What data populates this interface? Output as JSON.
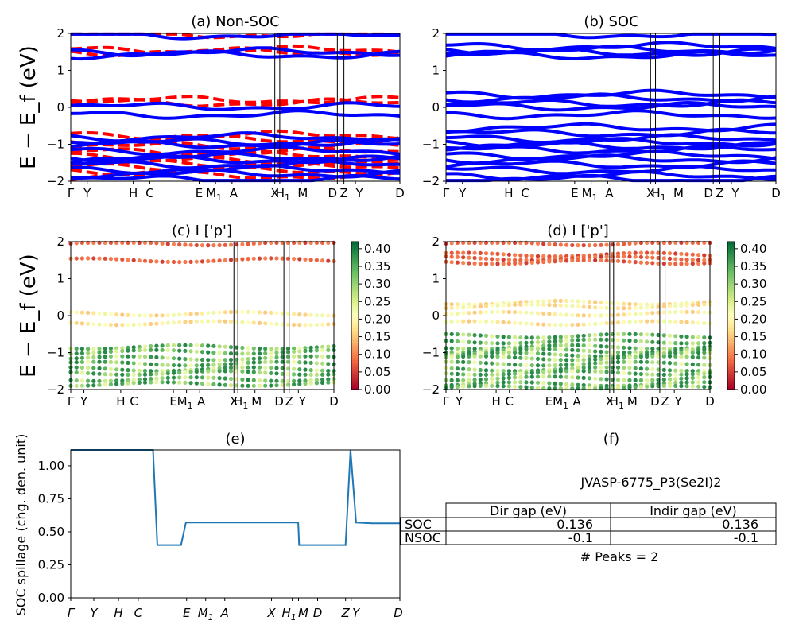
{
  "chart_data": [
    {
      "type": "line",
      "title": "(a) Non-SOC",
      "ylabel": "E − E_f (eV)",
      "ylim": [
        -2,
        2
      ],
      "yticks": [
        "2",
        "1",
        "0",
        "−1",
        "−2"
      ],
      "kpath_labels": [
        "Γ",
        "Y",
        "H",
        "C",
        "E",
        "M1",
        "A",
        "X",
        "H1",
        "M",
        "D",
        "Z",
        "Y",
        "D"
      ],
      "series": [
        {
          "style": "dashed",
          "color": "#ff0000",
          "bands_eV": [
            1.97,
            1.55,
            1.5,
            0.2,
            0.12,
            -0.75,
            -0.88,
            -1.05,
            -1.2,
            -1.3,
            -1.45,
            -1.52,
            -1.6,
            -1.72,
            -1.85
          ]
        },
        {
          "style": "solid",
          "color": "#0000ff",
          "bands_eV": [
            1.95,
            1.5,
            1.42,
            0.02,
            -0.2,
            -0.8,
            -0.95,
            -1.0,
            -1.18,
            -1.35,
            -1.42,
            -1.55,
            -1.68,
            -1.8,
            -1.95
          ]
        }
      ]
    },
    {
      "type": "line",
      "title": "(b) SOC",
      "ylim": [
        -2,
        2
      ],
      "yticks": [
        "2",
        "1",
        "0",
        "−1",
        "−2"
      ],
      "kpath_labels": [
        "Γ",
        "Y",
        "H",
        "C",
        "E",
        "M1",
        "A",
        "X",
        "H1",
        "M",
        "D",
        "Z",
        "Y",
        "D"
      ],
      "series": [
        {
          "style": "solid",
          "color": "#0000ff",
          "bands_eV": [
            1.97,
            1.65,
            1.55,
            1.48,
            1.4,
            0.35,
            0.25,
            0.1,
            0.02,
            -0.2,
            -0.55,
            -0.7,
            -0.85,
            -0.95,
            -1.05,
            -1.15,
            -1.3,
            -1.4,
            -1.55,
            -1.7,
            -1.85,
            -1.95
          ]
        }
      ]
    },
    {
      "type": "scatter",
      "title": "(c)  I ['p']",
      "ylabel": "E − E_f (eV)",
      "ylim": [
        -2,
        2
      ],
      "yticks": [
        "2",
        "1",
        "0",
        "−1",
        "−2"
      ],
      "kpath_labels": [
        "Γ",
        "Y",
        "H",
        "C",
        "E",
        "M1",
        "A",
        "X",
        "H1",
        "M",
        "D",
        "Z",
        "Y",
        "D"
      ],
      "colorbar": {
        "colormap": "RdYlGn",
        "min": 0.0,
        "max": 0.42,
        "ticks": [
          "0.40",
          "0.35",
          "0.30",
          "0.25",
          "0.20",
          "0.15",
          "0.10",
          "0.05",
          "0.00"
        ]
      },
      "series": [
        {
          "name": "bands",
          "energies_eV": [
            1.95,
            1.5,
            0.05,
            -0.2,
            -0.85,
            -0.98,
            -1.15,
            -1.3,
            -1.45,
            -1.55,
            -1.72,
            -1.85
          ]
        }
      ]
    },
    {
      "type": "scatter",
      "title": "(d) I ['p']",
      "ylim": [
        -2,
        2
      ],
      "yticks": [
        "2",
        "1",
        "0",
        "−1",
        "−2"
      ],
      "kpath_labels": [
        "Γ",
        "Y",
        "H",
        "C",
        "E",
        "M1",
        "A",
        "X",
        "H1",
        "M",
        "D",
        "Z",
        "Y",
        "D"
      ],
      "colorbar": {
        "colormap": "RdYlGn",
        "min": 0.0,
        "max": 0.42,
        "ticks": [
          "0.40",
          "0.35",
          "0.30",
          "0.25",
          "0.20",
          "0.15",
          "0.10",
          "0.05",
          "0.00"
        ]
      },
      "series": [
        {
          "name": "bands",
          "energies_eV": [
            1.95,
            1.65,
            1.55,
            1.45,
            0.35,
            0.25,
            0.05,
            -0.2,
            -0.55,
            -0.7,
            -0.85,
            -0.95,
            -1.05,
            -1.15,
            -1.3,
            -1.45,
            -1.55,
            -1.7,
            -1.85,
            -1.95
          ]
        }
      ]
    },
    {
      "type": "line",
      "title": "(e)",
      "ylabel": "SOC spillage (chg. den. unit)",
      "ylim": [
        0,
        1.12
      ],
      "yticks": [
        "1.00",
        "0.75",
        "0.50",
        "0.25",
        "0.00"
      ],
      "x_labels": [
        "Γ",
        "Y",
        "H",
        "C",
        "E",
        "M1",
        "A",
        "X",
        "H1",
        "M",
        "D",
        "Z",
        "Y",
        "D"
      ],
      "series": [
        {
          "color": "#1f77b4",
          "x": [
            0,
            0.158,
            0.175,
            0.25,
            0.263,
            0.335,
            0.35,
            0.56,
            0.587,
            0.647,
            0.677,
            0.691,
            0.694,
            0.717,
            0.835,
            0.85,
            0.867,
            0.916,
            0.926,
            0.937,
            1.0
          ],
          "y": [
            1.12,
            1.12,
            1.12,
            1.12,
            0.4,
            0.4,
            0.57,
            0.57,
            0.57,
            0.57,
            0.57,
            0.57,
            0.4,
            0.4,
            0.4,
            1.12,
            0.57,
            0.565,
            0.565,
            0.565,
            0.565
          ]
        }
      ]
    },
    {
      "type": "table",
      "title": "(f)",
      "subtitle": "JVASP-6775_P3(Se2I)2",
      "columns": [
        "Dir gap (eV)",
        "Indir gap (eV)"
      ],
      "rows": [
        {
          "label": "SOC",
          "values": [
            "0.136",
            "0.136"
          ]
        },
        {
          "label": "NSOC",
          "values": [
            "-0.1",
            "-0.1"
          ]
        }
      ],
      "footer": "# Peaks = 2"
    }
  ]
}
